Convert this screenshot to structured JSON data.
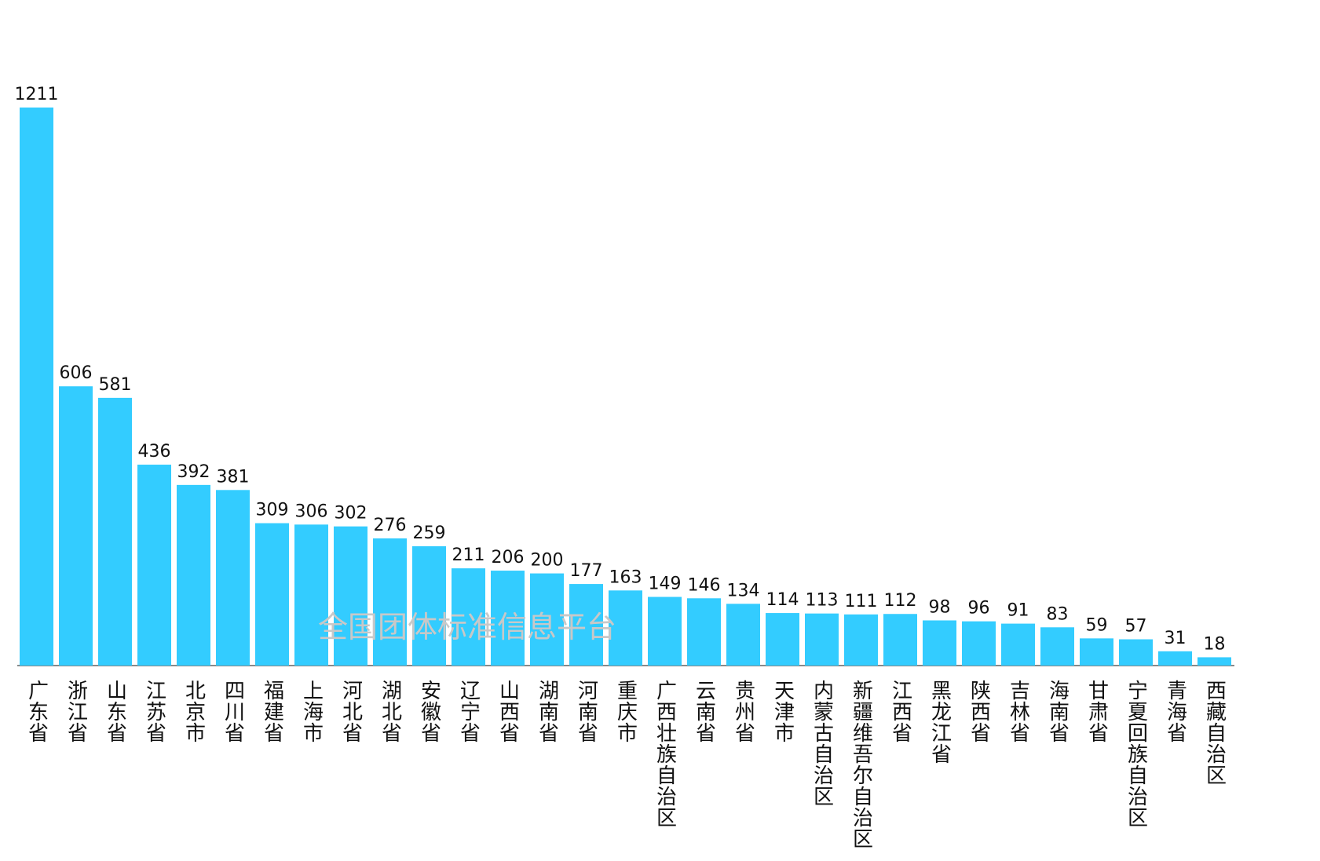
{
  "chart_data": {
    "type": "bar",
    "watermark": "全国团体标准信息平台",
    "categories": [
      "广东省",
      "浙江省",
      "山东省",
      "江苏省",
      "北京市",
      "四川省",
      "福建省",
      "上海市",
      "河北省",
      "湖北省",
      "安徽省",
      "辽宁省",
      "山西省",
      "湖南省",
      "河南省",
      "重庆市",
      "广西壮族自治区",
      "云南省",
      "贵州省",
      "天津市",
      "内蒙古自治区",
      "新疆维吾尔自治区",
      "江西省",
      "黑龙江省",
      "陕西省",
      "吉林省",
      "海南省",
      "甘肃省",
      "宁夏回族自治区",
      "青海省",
      "西藏自治区"
    ],
    "values": [
      1211,
      606,
      581,
      436,
      392,
      381,
      309,
      306,
      302,
      276,
      259,
      211,
      206,
      200,
      177,
      163,
      149,
      146,
      134,
      114,
      113,
      111,
      112,
      98,
      96,
      91,
      83,
      59,
      57,
      31,
      18
    ],
    "color": "#33ccff"
  }
}
